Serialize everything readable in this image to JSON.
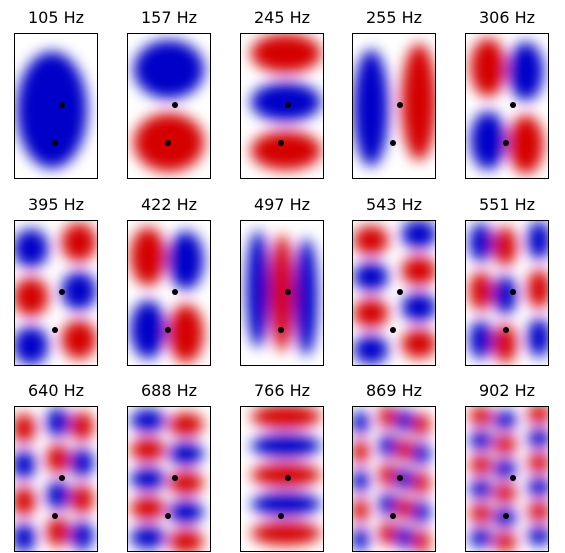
{
  "panels": [
    {
      "title": "105 Hz"
    },
    {
      "title": "157 Hz"
    },
    {
      "title": "245 Hz"
    },
    {
      "title": "255 Hz"
    },
    {
      "title": "306 Hz"
    },
    {
      "title": "395 Hz"
    },
    {
      "title": "422 Hz"
    },
    {
      "title": "497 Hz"
    },
    {
      "title": "543 Hz"
    },
    {
      "title": "551 Hz"
    },
    {
      "title": "640 Hz"
    },
    {
      "title": "688 Hz"
    },
    {
      "title": "766 Hz"
    },
    {
      "title": "869 Hz"
    },
    {
      "title": "902 Hz"
    }
  ]
}
